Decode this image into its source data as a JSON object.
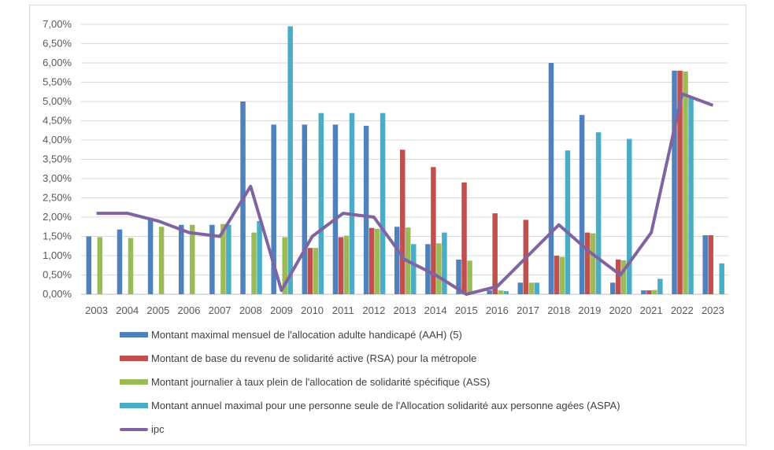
{
  "chart_data": {
    "type": "bar",
    "title": "",
    "xlabel": "",
    "ylabel": "",
    "ylim": [
      0,
      7
    ],
    "ytick_step": 0.5,
    "ytick_labels": [
      "0,00%",
      "0,50%",
      "1,00%",
      "1,50%",
      "2,00%",
      "2,50%",
      "3,00%",
      "3,50%",
      "4,00%",
      "4,50%",
      "5,00%",
      "5,50%",
      "6,00%",
      "6,50%",
      "7,00%"
    ],
    "grid": true,
    "legend_placement": "bottom",
    "categories": [
      "2003",
      "2004",
      "2005",
      "2006",
      "2007",
      "2008",
      "2009",
      "2010",
      "2011",
      "2012",
      "2013",
      "2014",
      "2015",
      "2016",
      "2017",
      "2018",
      "2019",
      "2020",
      "2021",
      "2022",
      "2023"
    ],
    "series": [
      {
        "name": "Montant maximal mensuel de l'allocation adulte handicapé (AAH) (5)",
        "type": "bar",
        "color": "#4f81bd",
        "values": [
          1.5,
          1.68,
          1.97,
          1.8,
          1.8,
          5.0,
          4.4,
          4.4,
          4.4,
          4.37,
          1.75,
          1.3,
          0.9,
          0.1,
          0.3,
          6.0,
          4.65,
          0.3,
          0.1,
          5.8,
          1.53
        ]
      },
      {
        "name": "Montant de base du revenu de solidarité active (RSA) pour la métropole",
        "type": "bar",
        "color": "#c0504d",
        "values": [
          null,
          null,
          null,
          null,
          null,
          null,
          null,
          1.2,
          1.48,
          1.72,
          3.75,
          3.3,
          2.9,
          2.1,
          1.93,
          1.0,
          1.6,
          0.9,
          0.1,
          5.8,
          1.53
        ]
      },
      {
        "name": "Montant journalier à taux plein de l'allocation de solidarité spécifique (ASS)",
        "type": "bar",
        "color": "#9bbb59",
        "values": [
          1.48,
          1.46,
          1.75,
          1.8,
          1.82,
          1.6,
          1.48,
          1.2,
          1.52,
          1.7,
          1.73,
          1.32,
          0.87,
          0.1,
          0.3,
          0.97,
          1.58,
          0.88,
          0.11,
          5.78,
          null
        ]
      },
      {
        "name": "Montant annuel maximal pour une personne seule de l'Allocation solidarité aux personne agées (ASPA)",
        "type": "bar",
        "color": "#4bacc6",
        "values": [
          null,
          null,
          null,
          null,
          1.8,
          1.9,
          6.95,
          4.7,
          4.7,
          4.7,
          1.3,
          1.6,
          null,
          0.08,
          0.3,
          3.73,
          4.2,
          4.03,
          0.4,
          5.1,
          0.8
        ]
      },
      {
        "name": "ipc",
        "type": "line",
        "color": "#8064a2",
        "values": [
          2.1,
          2.1,
          1.9,
          1.6,
          1.5,
          2.8,
          0.1,
          1.5,
          2.1,
          2.0,
          0.9,
          0.5,
          0.0,
          0.2,
          1.0,
          1.8,
          1.1,
          0.5,
          1.6,
          5.2,
          4.9
        ]
      }
    ]
  }
}
